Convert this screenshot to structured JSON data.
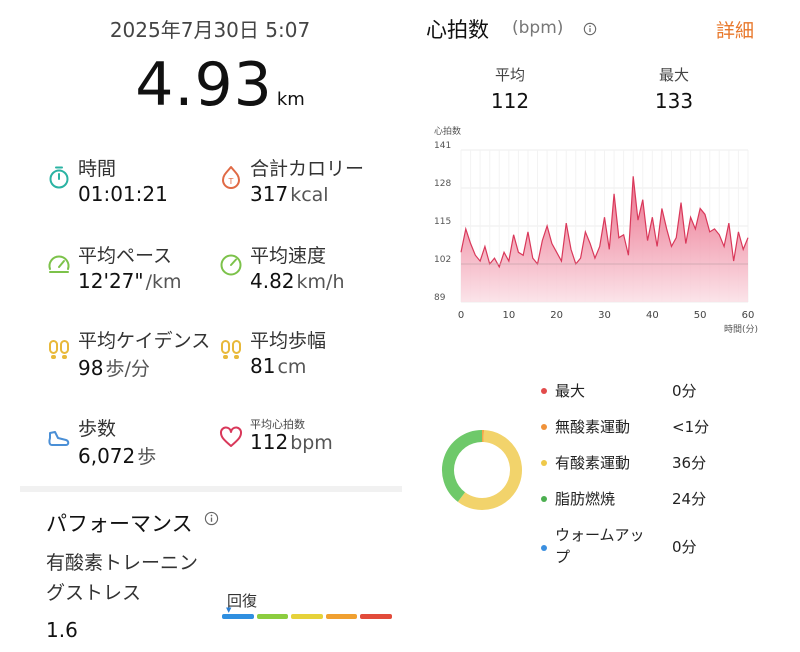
{
  "header": {
    "date": "2025年7月30日 5:07",
    "distance": "4.93",
    "distance_unit": "km"
  },
  "stats": {
    "time": {
      "label": "時間",
      "value": "01:01:21",
      "unit": ""
    },
    "calories": {
      "label": "合計カロリー",
      "value": "317",
      "unit": "kcal"
    },
    "pace": {
      "label": "平均ペース",
      "value": "12'27\"",
      "unit": "/km"
    },
    "speed": {
      "label": "平均速度",
      "value": "4.82",
      "unit": "km/h"
    },
    "cadence": {
      "label": "平均ケイデンス",
      "value": "98",
      "unit": "歩/分"
    },
    "stride": {
      "label": "平均歩幅",
      "value": "81",
      "unit": "cm"
    },
    "steps": {
      "label": "歩数",
      "value": "6,072",
      "unit": "歩"
    },
    "avg_hr": {
      "label": "平均心拍数",
      "value": "112",
      "unit": "bpm"
    }
  },
  "performance": {
    "title": "パフォーマンス",
    "label_line1": "有酸素トレーニン",
    "label_line2": "グストレス",
    "value": "1.6",
    "scale_label": "回復",
    "scale_colors": [
      "#2f8fe0",
      "#8ccd3f",
      "#e6d23a",
      "#f0a030",
      "#e24b3b"
    ]
  },
  "heart_rate": {
    "title": "心拍数",
    "unit": "(bpm)",
    "detail_label": "詳細",
    "avg_label": "平均",
    "avg_value": "112",
    "max_label": "最大",
    "max_value": "133"
  },
  "chart_data": {
    "type": "area",
    "ylabel": "心拍数",
    "xlabel": "時間(分)",
    "xlim": [
      0,
      60
    ],
    "ylim": [
      89,
      141
    ],
    "xticks": [
      "0",
      "10",
      "20",
      "30",
      "40",
      "50",
      "60"
    ],
    "yticks": [
      "141",
      "128",
      "115",
      "102",
      "89"
    ],
    "grid": true,
    "color": "#d9385a",
    "reference_line": 102,
    "x": [
      0,
      1,
      2,
      3,
      4,
      5,
      6,
      7,
      8,
      9,
      10,
      11,
      12,
      13,
      14,
      15,
      16,
      17,
      18,
      19,
      20,
      21,
      22,
      23,
      24,
      25,
      26,
      27,
      28,
      29,
      30,
      31,
      32,
      33,
      34,
      35,
      36,
      37,
      38,
      39,
      40,
      41,
      42,
      43,
      44,
      45,
      46,
      47,
      48,
      49,
      50,
      51,
      52,
      53,
      54,
      55,
      56,
      57,
      58,
      59,
      60
    ],
    "y": [
      106,
      114,
      109,
      105,
      103,
      108,
      102,
      104,
      101,
      106,
      103,
      112,
      106,
      105,
      113,
      104,
      102,
      110,
      115,
      109,
      106,
      103,
      116,
      107,
      102,
      104,
      113,
      109,
      104,
      108,
      118,
      107,
      126,
      111,
      112,
      105,
      132,
      117,
      124,
      110,
      118,
      108,
      121,
      114,
      108,
      111,
      123,
      109,
      118,
      114,
      121,
      119,
      113,
      114,
      112,
      108,
      116,
      103,
      113,
      107,
      111
    ]
  },
  "zones": [
    {
      "name": "最大",
      "time": "0分",
      "color": "#e24b4b"
    },
    {
      "name": "無酸素運動",
      "time": "<1分",
      "color": "#f0923a"
    },
    {
      "name": "有酸素運動",
      "time": "36分",
      "color": "#efc94a"
    },
    {
      "name": "脂肪燃焼",
      "time": "24分",
      "color": "#4caf50"
    },
    {
      "name": "ウォームアップ",
      "time": "0分",
      "color": "#3b8fe0"
    }
  ],
  "donut": {
    "segments": [
      {
        "minutes": 0.5,
        "color": "#f3a84a"
      },
      {
        "minutes": 36,
        "color": "#f2d36b"
      },
      {
        "minutes": 24,
        "color": "#6ec96a"
      }
    ]
  },
  "icons": {
    "time": "stopwatch-icon",
    "calories": "flame-icon",
    "pace": "gauge-icon",
    "speed": "speedometer-icon",
    "cadence": "footprints-icon",
    "stride": "footprints-icon",
    "steps": "shoe-icon",
    "avg_hr": "heart-icon"
  }
}
